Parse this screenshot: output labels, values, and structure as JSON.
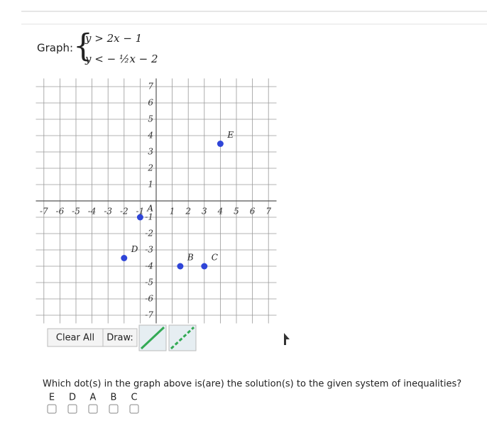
{
  "question": {
    "label": "Graph:",
    "inequalities": [
      "y > 2x − 1",
      "y < − ½x − 2"
    ]
  },
  "graph": {
    "xlim": [
      -7.5,
      7.5
    ],
    "ylim": [
      -7.5,
      7.5
    ],
    "xticks": [
      -7,
      -6,
      -5,
      -4,
      -3,
      -2,
      -1,
      1,
      2,
      3,
      4,
      5,
      6,
      7
    ],
    "yticks": [
      7,
      6,
      5,
      4,
      3,
      2,
      1,
      -1,
      -2,
      -3,
      -4,
      -5,
      -6,
      -7
    ],
    "grid": true,
    "point_color": "#2f45d8",
    "points": [
      {
        "label": "E",
        "x": 4,
        "y": 3.5
      },
      {
        "label": "A",
        "x": -1,
        "y": -1
      },
      {
        "label": "D",
        "x": -2,
        "y": -3.5
      },
      {
        "label": "B",
        "x": 1.5,
        "y": -4
      },
      {
        "label": "C",
        "x": 3,
        "y": -4
      }
    ]
  },
  "toolbar": {
    "clear": "Clear All",
    "draw": "Draw:"
  },
  "prompt": "Which dot(s) in the graph above is(are) the solution(s) to the given system of inequalities?",
  "choices": [
    "E",
    "D",
    "A",
    "B",
    "C"
  ]
}
